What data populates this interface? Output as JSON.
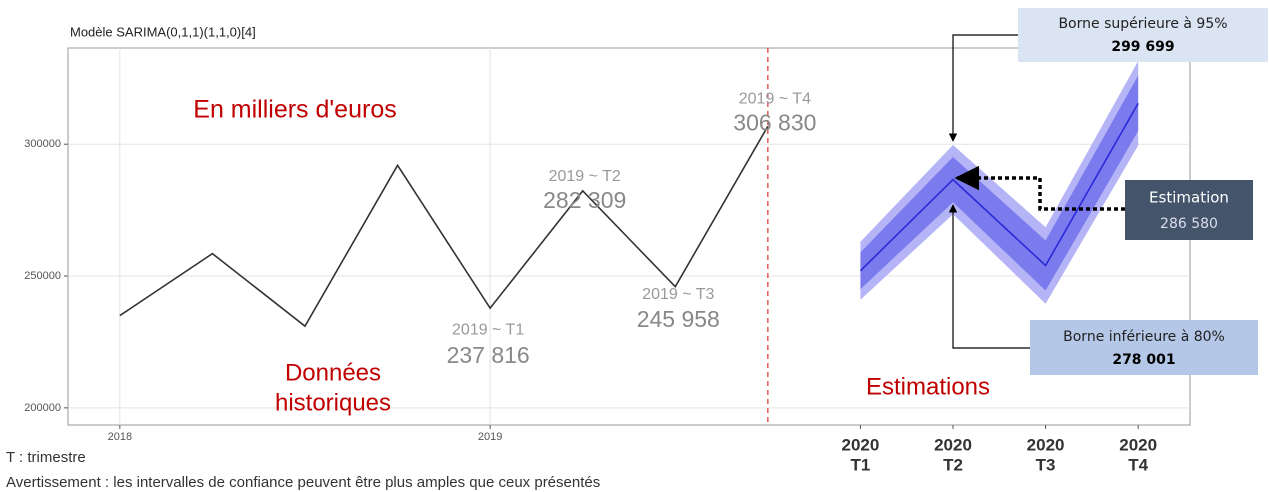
{
  "chart_data": {
    "type": "line",
    "title": "Modèle SARIMA(0,1,1)(1,1,0)[4]",
    "unit_note": "En milliers d'euros",
    "section_history": [
      "Données",
      "historiques"
    ],
    "section_forecast": "Estimations",
    "footnotes": [
      "T : trimestre",
      "Avertissement : les intervalles de confiance peuvent être plus amples que ceux présentés"
    ],
    "xlim": [
      2017.86,
      2020.89
    ],
    "xticks": [
      2018,
      2019
    ],
    "ylim": [
      193500,
      336500
    ],
    "yticks": [
      200000,
      250000,
      300000
    ],
    "grid": true,
    "series": [
      {
        "color": "#333333",
        "x": [
          2018,
          2018.25,
          2018.5,
          2018.75,
          2019,
          2019.25,
          2019.5,
          2019.75
        ],
        "values": [
          235000,
          258500,
          231000,
          292000,
          237816,
          282309,
          245958,
          306830
        ],
        "point_labels": [
          null,
          null,
          null,
          null,
          "2019 ~ T1",
          "2019 ~ T2",
          "2019 ~ T3",
          "2019 ~ T4"
        ],
        "value_labels": [
          null,
          null,
          null,
          null,
          "237 816",
          "282 309",
          "245 958",
          "306 830"
        ]
      },
      {
        "color": "#2a2ad8",
        "x": [
          2020,
          2020.25,
          2020.5,
          2020.75
        ],
        "values": [
          252000,
          286580,
          254000,
          315500
        ]
      }
    ],
    "bands": [
      {
        "color": "#b4b4f6",
        "lower": [
          241000,
          273461,
          239500,
          299500
        ],
        "upper": [
          263000,
          299699,
          268500,
          331500
        ]
      },
      {
        "color": "#7b7bee",
        "lower": [
          245000,
          278001,
          244500,
          305000
        ],
        "upper": [
          259000,
          295159,
          263500,
          326000
        ]
      }
    ],
    "forecast_ticks": [
      {
        "value": 2020,
        "year": "2020",
        "quarter": "T1"
      },
      {
        "value": 2020.25,
        "year": "2020",
        "quarter": "T2"
      },
      {
        "value": 2020.5,
        "year": "2020",
        "quarter": "T3"
      },
      {
        "value": 2020.75,
        "year": "2020",
        "quarter": "T4"
      }
    ],
    "callouts": [
      {
        "title": "Borne supérieure à 95%",
        "label": "299 699"
      },
      {
        "title": "Estimation",
        "label": "286 580"
      },
      {
        "title": "Borne inférieure à 80%",
        "label": "278 001"
      }
    ]
  }
}
